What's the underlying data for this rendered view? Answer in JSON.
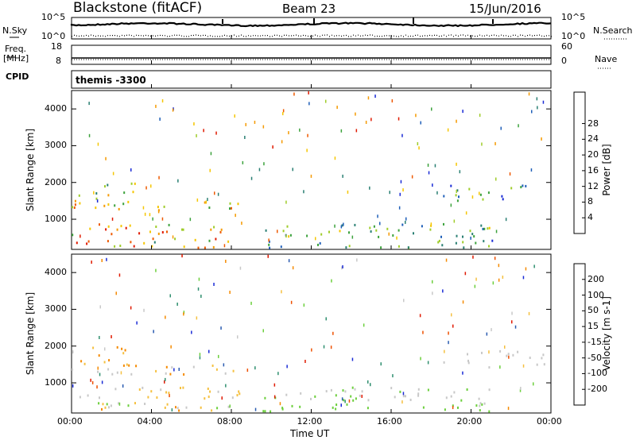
{
  "header": {
    "station": "Blackstone (fitACF)",
    "beam": "Beam 23",
    "date": "15/Jun/2016"
  },
  "top_panels": {
    "nsky_label": "N.Sky",
    "nsearch_label": "N.Search",
    "freq_label_1": "Freq.",
    "freq_label_2": "[MHz]",
    "cpid_label": "CPID",
    "nave_label": "Nave",
    "noise_ticks_left": [
      "10^5",
      "10^0"
    ],
    "noise_ticks_right": [
      "10^5",
      "10^0"
    ],
    "freq_ticks_left": [
      "18",
      "8"
    ],
    "nave_ticks_right": [
      "60",
      "0"
    ],
    "cpid_text": "themis -3300"
  },
  "chart_data": [
    {
      "type": "heatmap",
      "quantity": "power",
      "ylabel": "Slant Range [km]",
      "xlabel": "Time UT",
      "x_ticks": [
        "00:00",
        "04:00",
        "08:00",
        "12:00",
        "16:00",
        "20:00",
        "00:00"
      ],
      "y_ticks": [
        1000,
        2000,
        3000,
        4000
      ],
      "ylim": [
        180,
        4500
      ],
      "colorbar_label": "Power [dB]",
      "colorbar_ticks": [
        4,
        8,
        12,
        16,
        20,
        24,
        28
      ],
      "colorbar_colors": [
        "#1a2bd6",
        "#1f5fb8",
        "#2a7f73",
        "#3ca23c",
        "#9fcc2a",
        "#f5c600",
        "#f59a00",
        "#ee5a00",
        "#e01a00"
      ]
    },
    {
      "type": "heatmap",
      "quantity": "velocity",
      "ylabel": "Slant Range [km]",
      "xlabel": "Time UT",
      "x_ticks": [
        "00:00",
        "04:00",
        "08:00",
        "12:00",
        "16:00",
        "20:00",
        "00:00"
      ],
      "y_ticks": [
        1000,
        2000,
        3000,
        4000
      ],
      "ylim": [
        180,
        4500
      ],
      "colorbar_label": "Velocity [m s-1]",
      "colorbar_ticks": [
        200,
        100,
        50,
        15,
        -15,
        -50,
        -100,
        -200
      ],
      "colorbar_colors": [
        "#1a2bd6",
        "#2a5bb0",
        "#2f8f6f",
        "#6ccf3c",
        "#c8c8c8",
        "#f5c040",
        "#f58a00",
        "#ee5000",
        "#e01a00"
      ]
    }
  ]
}
